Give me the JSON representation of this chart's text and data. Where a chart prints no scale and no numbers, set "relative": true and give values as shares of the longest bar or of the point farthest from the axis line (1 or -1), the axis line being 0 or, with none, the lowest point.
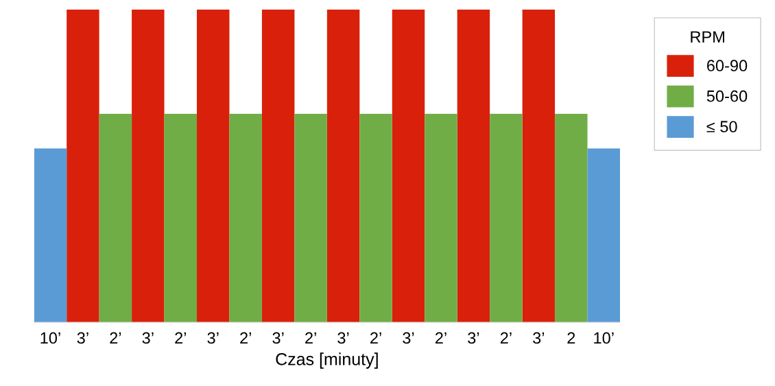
{
  "chart_data": {
    "type": "bar",
    "relative": true,
    "xlabel": "Czas [minuty]",
    "legend_title": "RPM",
    "legend": "right",
    "categories": [
      "10’",
      "3’",
      "2’",
      "3’",
      "2’",
      "3’",
      "2’",
      "3’",
      "2’",
      "3’",
      "2’",
      "3’",
      "2’",
      "3’",
      "2’",
      "3’",
      "2",
      "10’"
    ],
    "series": [
      {
        "name": "60-90",
        "color": "#d9200b",
        "values": [
          null,
          1,
          null,
          1,
          null,
          1,
          null,
          1,
          null,
          1,
          null,
          1,
          null,
          1,
          null,
          1,
          null,
          null
        ]
      },
      {
        "name": "50-60",
        "color": "#70ad47",
        "values": [
          null,
          null,
          0.667,
          null,
          0.667,
          null,
          0.667,
          null,
          0.667,
          null,
          0.667,
          null,
          0.667,
          null,
          0.667,
          null,
          0.667,
          null
        ]
      },
      {
        "name": "≤ 50",
        "color": "#5b9bd5",
        "values": [
          0.556,
          null,
          null,
          null,
          null,
          null,
          null,
          null,
          null,
          null,
          null,
          null,
          null,
          null,
          null,
          null,
          null,
          0.556
        ]
      }
    ]
  }
}
